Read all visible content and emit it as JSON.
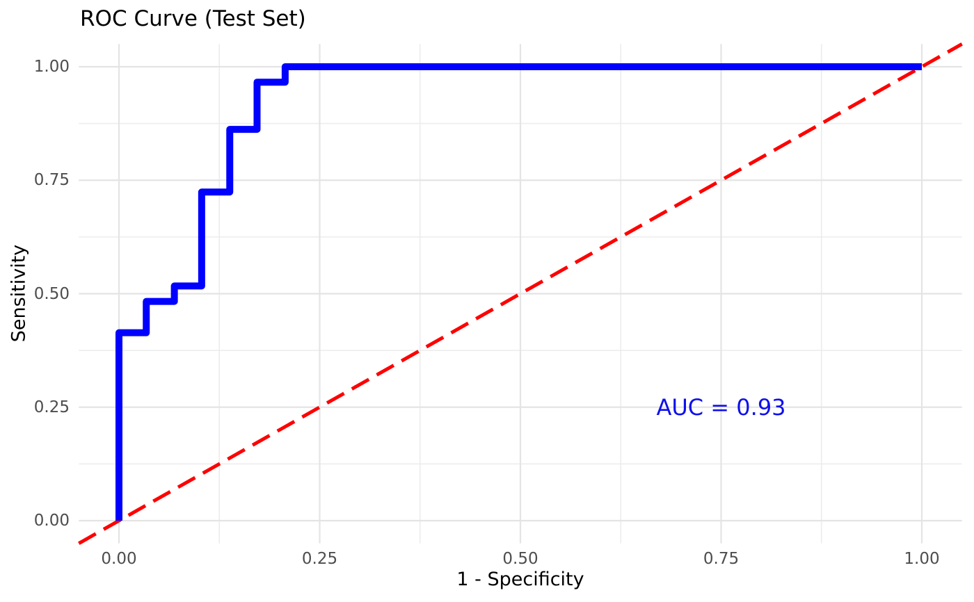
{
  "chart_data": {
    "type": "line",
    "subtype": "roc-step-curve",
    "title": "ROC Curve (Test Set)",
    "xlabel": "1 - Specificity",
    "ylabel": "Sensitivity",
    "xlim": [
      -0.05,
      1.05
    ],
    "ylim": [
      -0.05,
      1.05
    ],
    "grid": {
      "major_color": "#e4e4e4",
      "minor_color": "#ececec",
      "background": "#ffffff"
    },
    "x_ticks": {
      "values": [
        0,
        0.25,
        0.5,
        0.75,
        1
      ],
      "labels": [
        "0.00",
        "0.25",
        "0.50",
        "0.75",
        "1.00"
      ]
    },
    "y_ticks": {
      "values": [
        0,
        0.25,
        0.5,
        0.75,
        1
      ],
      "labels": [
        "0.00",
        "0.25",
        "0.50",
        "0.75",
        "1.00"
      ]
    },
    "minor_ticks": [
      0.125,
      0.375,
      0.625,
      0.875
    ],
    "series": [
      {
        "name": "chance diagonal",
        "id": "chance-diagonal-line",
        "color": "#ff0000",
        "width": 5,
        "dash": [
          28,
          13
        ],
        "points": [
          [
            -0.05,
            -0.05
          ],
          [
            1.05,
            1.05
          ]
        ]
      },
      {
        "name": "ROC curve",
        "id": "roc-curve-line",
        "color": "#0000ff",
        "width": 10,
        "points": [
          [
            0.0,
            0.0
          ],
          [
            0.0,
            0.414
          ],
          [
            0.034,
            0.414
          ],
          [
            0.034,
            0.483
          ],
          [
            0.069,
            0.483
          ],
          [
            0.069,
            0.517
          ],
          [
            0.103,
            0.517
          ],
          [
            0.103,
            0.724
          ],
          [
            0.138,
            0.724
          ],
          [
            0.138,
            0.862
          ],
          [
            0.172,
            0.862
          ],
          [
            0.172,
            0.966
          ],
          [
            0.207,
            0.966
          ],
          [
            0.207,
            1.0
          ],
          [
            1.0,
            1.0
          ]
        ]
      }
    ],
    "annotation": {
      "text": "AUC = 0.93",
      "auc_value": 0.93,
      "x": 0.75,
      "y": 0.25,
      "color": "#0f0fee"
    },
    "text_colors": {
      "title": "#000000",
      "axis_titles": "#000000",
      "tick_labels": "#4d4d4d"
    },
    "legend": "none"
  }
}
